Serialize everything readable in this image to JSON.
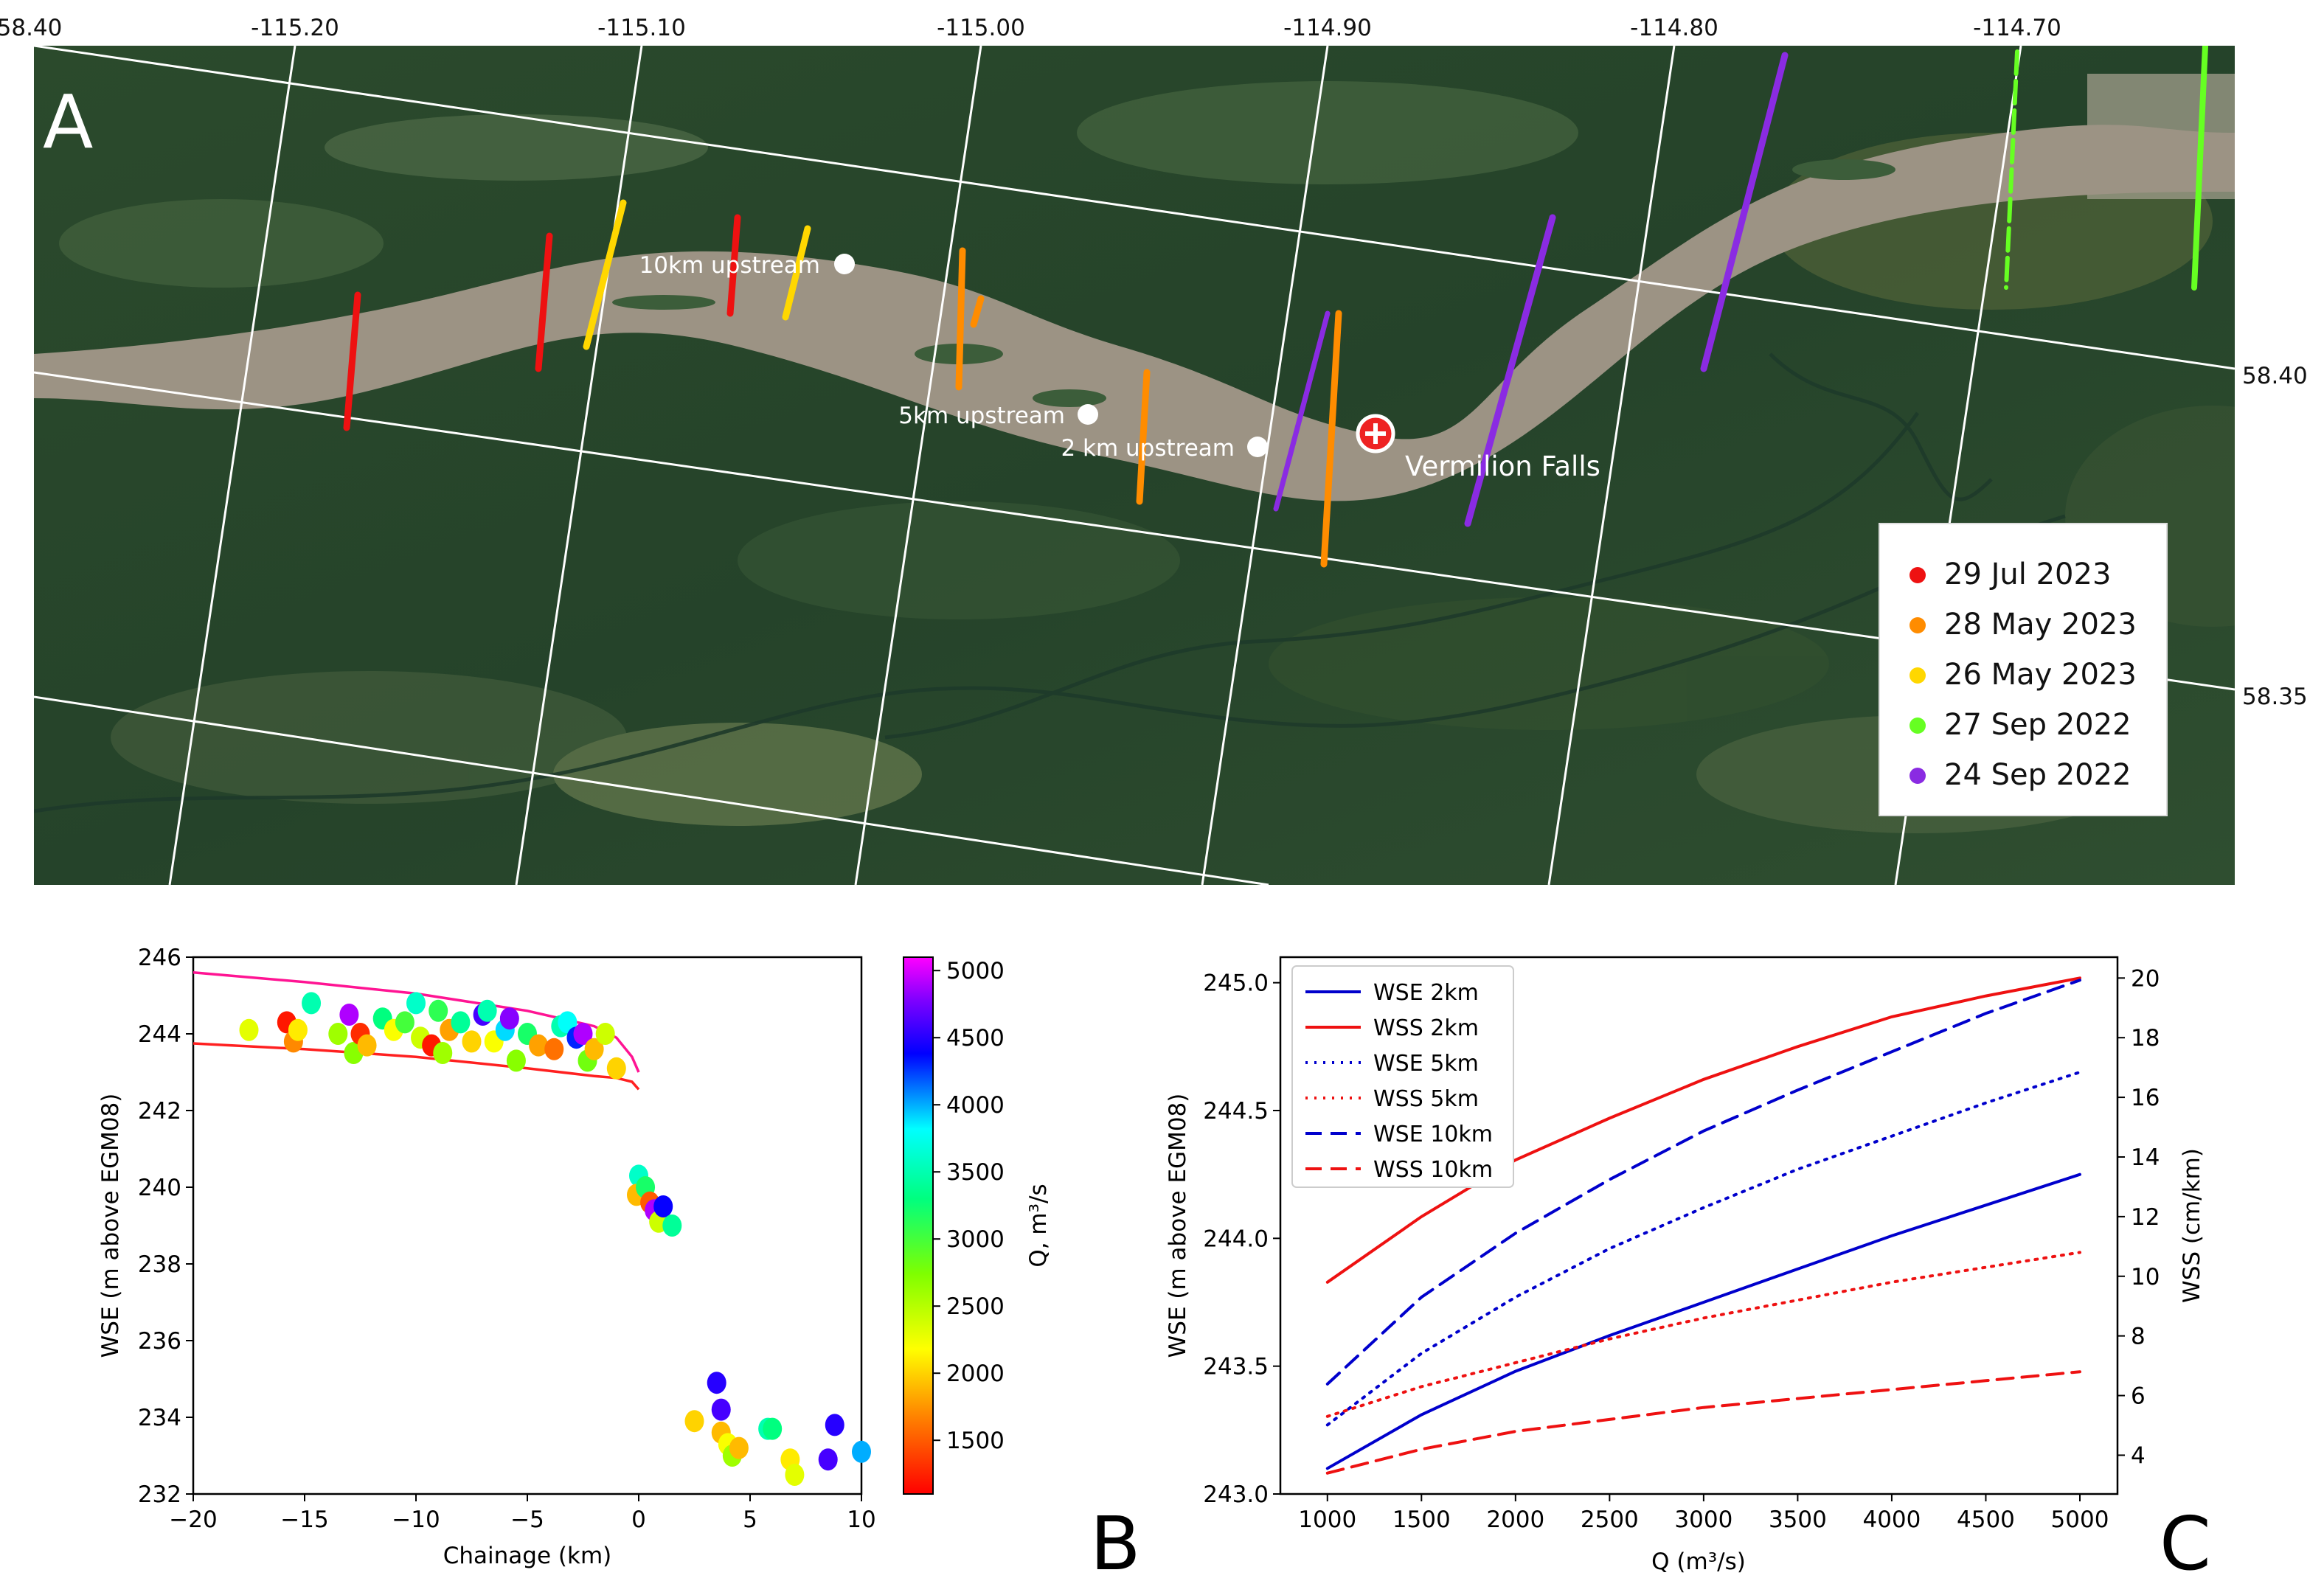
{
  "panel_a": {
    "label": "A",
    "lon_ticks": [
      "58.40",
      "-115.20",
      "-115.10",
      "-115.00",
      "-114.90",
      "-114.80",
      "-114.70"
    ],
    "lat_ticks": [
      "58.40",
      "58.35"
    ],
    "places": {
      "up10": "10km upstream",
      "up5": "5km upstream",
      "up2": "2 km upstream",
      "falls": "Vermilion Falls"
    },
    "legend": [
      {
        "label": "29 Jul 2023",
        "color": "#ee1111"
      },
      {
        "label": "28 May 2023",
        "color": "#ff8c00"
      },
      {
        "label": "26 May 2023",
        "color": "#ffd700"
      },
      {
        "label": "27 Sep 2022",
        "color": "#66ff22"
      },
      {
        "label": "24 Sep 2022",
        "color": "#8a2be2"
      }
    ]
  },
  "panel_b": {
    "label": "B"
  },
  "panel_c": {
    "label": "C"
  },
  "chart_data": [
    {
      "type": "scatter",
      "title": "",
      "xlabel": "Chainage (km)",
      "ylabel": "WSE (m above EGM08)",
      "colorbar_label": "Q, m³/s",
      "xlim": [
        -20,
        10
      ],
      "ylim": [
        232,
        246
      ],
      "xticks": [
        -20,
        -15,
        -10,
        -5,
        0,
        5,
        10
      ],
      "yticks": [
        232,
        234,
        236,
        238,
        240,
        242,
        244,
        246
      ],
      "colorbar_ticks": [
        1500,
        2000,
        2500,
        3000,
        3500,
        4000,
        4500,
        5000
      ],
      "colorbar_range": [
        1100,
        5100
      ],
      "envelope_lines": [
        {
          "name": "max Q profile",
          "color": "#ff1493",
          "x": [
            -20,
            -15,
            -10,
            -5,
            -2,
            -1,
            -0.3,
            0
          ],
          "y": [
            245.6,
            245.35,
            245.05,
            244.6,
            244.2,
            243.9,
            243.4,
            243.0
          ]
        },
        {
          "name": "min Q profile",
          "color": "#ff2020",
          "x": [
            -20,
            -15,
            -10,
            -5,
            -2,
            -1,
            -0.3,
            0
          ],
          "y": [
            243.75,
            243.6,
            243.4,
            243.1,
            242.9,
            242.85,
            242.75,
            242.55
          ]
        }
      ],
      "points": [
        {
          "x": -17.5,
          "y": 244.1,
          "q": 2300
        },
        {
          "x": -15.8,
          "y": 244.3,
          "q": 1200
        },
        {
          "x": -15.5,
          "y": 243.8,
          "q": 1700
        },
        {
          "x": -15.3,
          "y": 244.1,
          "q": 2100
        },
        {
          "x": -14.7,
          "y": 244.8,
          "q": 3500
        },
        {
          "x": -13.5,
          "y": 244.0,
          "q": 2600
        },
        {
          "x": -13.0,
          "y": 244.5,
          "q": 4900
        },
        {
          "x": -12.8,
          "y": 243.5,
          "q": 2700
        },
        {
          "x": -12.5,
          "y": 244.0,
          "q": 1300
        },
        {
          "x": -12.2,
          "y": 243.7,
          "q": 1900
        },
        {
          "x": -11.5,
          "y": 244.4,
          "q": 3300
        },
        {
          "x": -11.0,
          "y": 244.1,
          "q": 2200
        },
        {
          "x": -10.5,
          "y": 244.3,
          "q": 3000
        },
        {
          "x": -10.0,
          "y": 244.8,
          "q": 3600
        },
        {
          "x": -9.8,
          "y": 243.9,
          "q": 2400
        },
        {
          "x": -9.3,
          "y": 243.7,
          "q": 1200
        },
        {
          "x": -9.0,
          "y": 244.6,
          "q": 3100
        },
        {
          "x": -8.8,
          "y": 243.5,
          "q": 2600
        },
        {
          "x": -8.5,
          "y": 244.1,
          "q": 1800
        },
        {
          "x": -8.0,
          "y": 244.3,
          "q": 3400
        },
        {
          "x": -7.5,
          "y": 243.8,
          "q": 2000
        },
        {
          "x": -7.0,
          "y": 244.5,
          "q": 4600
        },
        {
          "x": -6.8,
          "y": 244.6,
          "q": 3500
        },
        {
          "x": -6.5,
          "y": 243.8,
          "q": 2200
        },
        {
          "x": -6.0,
          "y": 244.1,
          "q": 3900
        },
        {
          "x": -5.8,
          "y": 244.4,
          "q": 4800
        },
        {
          "x": -5.5,
          "y": 243.3,
          "q": 2700
        },
        {
          "x": -5.0,
          "y": 244.0,
          "q": 3200
        },
        {
          "x": -4.5,
          "y": 243.7,
          "q": 1800
        },
        {
          "x": -3.8,
          "y": 243.6,
          "q": 1600
        },
        {
          "x": -3.5,
          "y": 244.2,
          "q": 3500
        },
        {
          "x": -3.2,
          "y": 244.3,
          "q": 3800
        },
        {
          "x": -2.8,
          "y": 243.9,
          "q": 4300
        },
        {
          "x": -2.5,
          "y": 244.0,
          "q": 4900
        },
        {
          "x": -2.3,
          "y": 243.3,
          "q": 2800
        },
        {
          "x": -2.0,
          "y": 243.6,
          "q": 1900
        },
        {
          "x": -1.5,
          "y": 244.0,
          "q": 2400
        },
        {
          "x": -1.0,
          "y": 243.1,
          "q": 2000
        },
        {
          "x": 0.0,
          "y": 240.3,
          "q": 3600
        },
        {
          "x": -0.1,
          "y": 239.8,
          "q": 1900
        },
        {
          "x": 0.3,
          "y": 240.0,
          "q": 3200
        },
        {
          "x": 0.5,
          "y": 239.6,
          "q": 1500
        },
        {
          "x": 0.7,
          "y": 239.4,
          "q": 4900
        },
        {
          "x": 0.9,
          "y": 239.1,
          "q": 2400
        },
        {
          "x": 1.1,
          "y": 239.5,
          "q": 4400
        },
        {
          "x": 1.5,
          "y": 239.0,
          "q": 3400
        },
        {
          "x": 2.5,
          "y": 233.9,
          "q": 2000
        },
        {
          "x": 3.5,
          "y": 234.9,
          "q": 4500
        },
        {
          "x": 3.7,
          "y": 234.2,
          "q": 4600
        },
        {
          "x": 3.7,
          "y": 233.6,
          "q": 1900
        },
        {
          "x": 4.0,
          "y": 233.3,
          "q": 2200
        },
        {
          "x": 4.2,
          "y": 233.0,
          "q": 2600
        },
        {
          "x": 4.5,
          "y": 233.2,
          "q": 1900
        },
        {
          "x": 5.8,
          "y": 233.7,
          "q": 3500
        },
        {
          "x": 6.0,
          "y": 233.7,
          "q": 3300
        },
        {
          "x": 6.8,
          "y": 232.9,
          "q": 2100
        },
        {
          "x": 7.0,
          "y": 232.5,
          "q": 2300
        },
        {
          "x": 8.5,
          "y": 232.9,
          "q": 4600
        },
        {
          "x": 8.8,
          "y": 233.8,
          "q": 4500
        },
        {
          "x": 10.0,
          "y": 233.1,
          "q": 4000
        }
      ]
    },
    {
      "type": "line",
      "title": "",
      "xlabel": "Q (m³/s)",
      "ylabel": "WSE (m above EGM08)",
      "y2label": "WSS (cm/km)",
      "xlim": [
        750,
        5200
      ],
      "ylim": [
        243.0,
        245.1
      ],
      "y2lim": [
        2.7,
        20.7
      ],
      "xticks": [
        1000,
        1500,
        2000,
        2500,
        3000,
        3500,
        4000,
        4500,
        5000
      ],
      "yticks": [
        "243.0",
        "243.5",
        "244.0",
        "244.5",
        "245.0"
      ],
      "y2ticks": [
        4,
        6,
        8,
        10,
        12,
        14,
        16,
        18,
        20
      ],
      "x": [
        1000,
        1500,
        2000,
        2500,
        3000,
        3500,
        4000,
        4500,
        5000
      ],
      "series": [
        {
          "name": "WSE 2km",
          "axis": "left",
          "color": "#0000cc",
          "dash": "solid",
          "values": [
            243.1,
            243.31,
            243.48,
            243.62,
            243.75,
            243.88,
            244.01,
            244.13,
            244.25
          ]
        },
        {
          "name": "WSS 2km",
          "axis": "right",
          "color": "#ee1111",
          "dash": "solid",
          "values": [
            9.8,
            12.0,
            13.9,
            15.3,
            16.6,
            17.7,
            18.7,
            19.4,
            20.0
          ]
        },
        {
          "name": "WSE 5km",
          "axis": "left",
          "color": "#0000cc",
          "dash": "dotted",
          "values": [
            243.27,
            243.55,
            243.77,
            243.96,
            244.12,
            244.27,
            244.4,
            244.53,
            244.65
          ]
        },
        {
          "name": "WSS 5km",
          "axis": "right",
          "color": "#ee1111",
          "dash": "dotted",
          "values": [
            5.3,
            6.3,
            7.1,
            7.9,
            8.6,
            9.2,
            9.8,
            10.3,
            10.8
          ]
        },
        {
          "name": "WSE 10km",
          "axis": "left",
          "color": "#0000cc",
          "dash": "dashed",
          "values": [
            243.43,
            243.77,
            244.02,
            244.23,
            244.42,
            244.58,
            244.73,
            244.88,
            245.01
          ]
        },
        {
          "name": "WSS 10km",
          "axis": "right",
          "color": "#ee1111",
          "dash": "dashed",
          "values": [
            3.4,
            4.2,
            4.8,
            5.2,
            5.6,
            5.9,
            6.2,
            6.5,
            6.8
          ]
        }
      ]
    }
  ]
}
